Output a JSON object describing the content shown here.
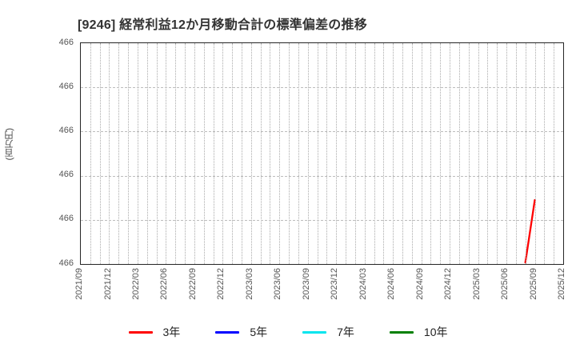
{
  "title": "[9246]  経常利益12か月移動合計の標準偏差の推移",
  "y_axis": {
    "unit_label": "(百万円)",
    "tick_labels": [
      "466",
      "466",
      "466",
      "466",
      "466",
      "466"
    ]
  },
  "x_axis": {
    "tick_labels": [
      "2021/09",
      "2021/12",
      "2022/03",
      "2022/06",
      "2022/09",
      "2022/12",
      "2023/03",
      "2023/06",
      "2023/09",
      "2023/12",
      "2024/03",
      "2024/06",
      "2024/09",
      "2024/12",
      "2025/03",
      "2025/06",
      "2025/09",
      "2025/12"
    ]
  },
  "legend": [
    {
      "label": "3年",
      "color": "#ff0000"
    },
    {
      "label": "5年",
      "color": "#0000ff"
    },
    {
      "label": "7年",
      "color": "#00e5ee"
    },
    {
      "label": "10年",
      "color": "#008000"
    }
  ],
  "chart_data": {
    "type": "line",
    "title": "[9246]  経常利益12か月移動合計の標準偏差の推移",
    "ylabel": "(百万円)",
    "x_start": "2021/09",
    "x_end": "2025/12",
    "x_tick_labels": [
      "2021/09",
      "2021/12",
      "2022/03",
      "2022/06",
      "2022/09",
      "2022/12",
      "2023/03",
      "2023/06",
      "2023/09",
      "2023/12",
      "2024/03",
      "2024/06",
      "2024/09",
      "2024/12",
      "2025/03",
      "2025/06",
      "2025/09",
      "2025/12"
    ],
    "y_tick_labels": [
      "466",
      "466",
      "466",
      "466",
      "466",
      "466"
    ],
    "grid": {
      "vertical": "dotted, monthly",
      "horizontal": "dashed, at y ticks"
    },
    "legend_position": "bottom-center",
    "series": [
      {
        "name": "3年",
        "color": "#ff0000",
        "points": [
          {
            "date": "2025/08",
            "display_value": 466,
            "axis_fraction": 0.007
          },
          {
            "date": "2025/09",
            "display_value": 466,
            "axis_fraction": 0.29
          }
        ]
      },
      {
        "name": "5年",
        "color": "#0000ff",
        "points": []
      },
      {
        "name": "7年",
        "color": "#00e5ee",
        "points": []
      },
      {
        "name": "10年",
        "color": "#008000",
        "points": []
      }
    ]
  }
}
